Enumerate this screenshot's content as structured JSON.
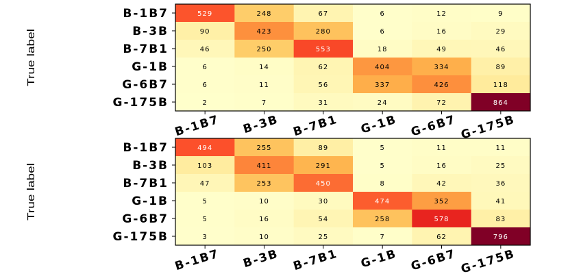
{
  "chart_data": [
    {
      "type": "heatmap",
      "ylabel": "True label",
      "xlabel": "",
      "classes": [
        "B-1B7",
        "B-3B",
        "B-7B1",
        "G-1B",
        "G-6B7",
        "G-175B"
      ],
      "values": [
        [
          529,
          248,
          67,
          6,
          12,
          9
        ],
        [
          90,
          423,
          280,
          6,
          16,
          29
        ],
        [
          46,
          250,
          553,
          18,
          49,
          46
        ],
        [
          6,
          14,
          62,
          404,
          334,
          89
        ],
        [
          6,
          11,
          56,
          337,
          426,
          118
        ],
        [
          2,
          7,
          31,
          24,
          72,
          864
        ]
      ],
      "colormap": "YlOrRd",
      "vmin": 0,
      "vmax": 864
    },
    {
      "type": "heatmap",
      "ylabel": "True label",
      "xlabel": "",
      "classes": [
        "B-1B7",
        "B-3B",
        "B-7B1",
        "G-1B",
        "G-6B7",
        "G-175B"
      ],
      "values": [
        [
          494,
          255,
          89,
          5,
          11,
          11
        ],
        [
          103,
          411,
          291,
          5,
          16,
          25
        ],
        [
          47,
          253,
          450,
          8,
          42,
          36
        ],
        [
          5,
          10,
          30,
          474,
          352,
          41
        ],
        [
          5,
          16,
          54,
          258,
          578,
          83
        ],
        [
          3,
          10,
          25,
          7,
          62,
          796
        ]
      ],
      "colormap": "YlOrRd",
      "vmin": 0,
      "vmax": 796
    }
  ]
}
